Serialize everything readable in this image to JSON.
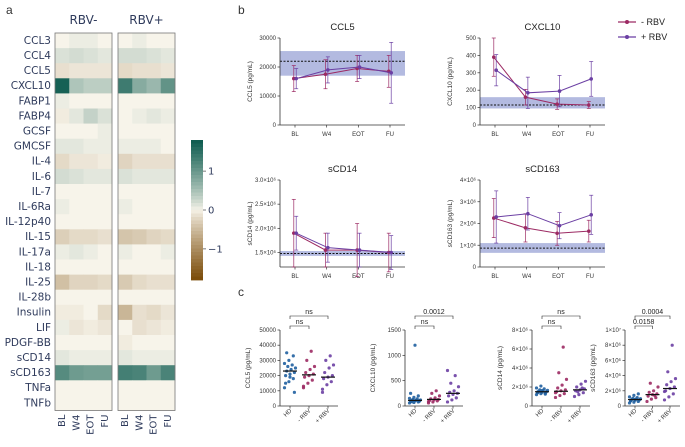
{
  "panel_labels": {
    "a": "a",
    "b": "b",
    "c": "c"
  },
  "colors": {
    "hd": "#1f5fa0",
    "minus": "#9c2a63",
    "plus": "#6b3fa3",
    "band": "#9aa3d6",
    "hm_pos": "#0b5a4e",
    "hm_neg": "#7a4a07"
  },
  "chart_data": [
    {
      "type": "heatmap",
      "panel": "a",
      "groups": [
        "RBV-",
        "RBV+"
      ],
      "columns": [
        "BL",
        "W4",
        "EOT",
        "FU",
        "BL",
        "W4",
        "EOT",
        "FU"
      ],
      "rows": [
        "CCL3",
        "CCL4",
        "CCL5",
        "CXCL10",
        "FABP1",
        "FABP4",
        "GCSF",
        "GMCSF",
        "IL-4",
        "IL-6",
        "IL-7",
        "IL-6Ra",
        "IL-12p40",
        "IL-15",
        "IL-17a",
        "IL-18",
        "IL-25",
        "IL-28b",
        "Insulin",
        "LIF",
        "PDGF-BB",
        "sCD14",
        "sCD163",
        "TNFa",
        "TNFb"
      ],
      "values": [
        [
          0.0,
          0.05,
          0.05,
          0.0,
          0.0,
          0.05,
          0.0,
          0.0
        ],
        [
          0.15,
          0.2,
          0.15,
          0.1,
          0.2,
          0.2,
          0.15,
          0.1
        ],
        [
          -0.15,
          -0.1,
          -0.1,
          -0.1,
          -0.2,
          -0.15,
          -0.15,
          -0.1
        ],
        [
          1.7,
          0.45,
          0.35,
          0.35,
          1.35,
          0.75,
          0.6,
          1.05
        ],
        [
          0.05,
          0.0,
          0.0,
          0.0,
          0.0,
          0.0,
          0.0,
          0.0
        ],
        [
          -0.05,
          0.1,
          0.3,
          0.15,
          0.0,
          0.05,
          0.1,
          0.05
        ],
        [
          0.0,
          0.0,
          0.0,
          0.05,
          0.0,
          0.0,
          0.0,
          0.0
        ],
        [
          0.1,
          0.1,
          0.05,
          0.05,
          0.05,
          0.05,
          0.05,
          0.0
        ],
        [
          -0.2,
          -0.1,
          -0.1,
          -0.05,
          -0.25,
          -0.15,
          -0.15,
          -0.15
        ],
        [
          0.2,
          0.15,
          0.1,
          0.1,
          0.15,
          0.1,
          0.1,
          0.1
        ],
        [
          0.0,
          0.0,
          0.0,
          0.0,
          0.0,
          0.0,
          0.0,
          0.0
        ],
        [
          0.05,
          0.0,
          0.0,
          0.0,
          0.05,
          0.0,
          0.0,
          0.0
        ],
        [
          0.0,
          0.0,
          0.0,
          0.0,
          0.0,
          0.0,
          0.0,
          0.0
        ],
        [
          -0.3,
          -0.2,
          -0.2,
          -0.15,
          -0.4,
          -0.35,
          -0.25,
          -0.2
        ],
        [
          0.05,
          0.1,
          0.05,
          0.0,
          0.05,
          0.0,
          0.0,
          0.05
        ],
        [
          0.0,
          0.0,
          0.0,
          0.0,
          0.0,
          0.0,
          0.0,
          0.0
        ],
        [
          -0.45,
          -0.25,
          -0.25,
          -0.2,
          -0.35,
          -0.2,
          -0.15,
          -0.15
        ],
        [
          0.0,
          0.0,
          0.0,
          0.0,
          0.0,
          0.0,
          0.0,
          0.0
        ],
        [
          -0.05,
          -0.05,
          0.0,
          -0.2,
          -0.55,
          -0.15,
          -0.2,
          -0.1
        ],
        [
          0.05,
          -0.1,
          -0.05,
          -0.1,
          0.0,
          -0.15,
          -0.1,
          -0.05
        ],
        [
          0.0,
          0.0,
          0.0,
          0.0,
          -0.05,
          0.0,
          0.0,
          0.0
        ],
        [
          0.1,
          0.05,
          0.05,
          0.05,
          0.1,
          0.05,
          0.05,
          0.05
        ],
        [
          1.15,
          0.95,
          0.9,
          0.9,
          1.3,
          1.25,
          0.95,
          1.25
        ],
        [
          0.0,
          0.0,
          0.0,
          0.0,
          0.0,
          0.0,
          0.0,
          0.0
        ],
        [
          0.0,
          0.0,
          0.0,
          0.0,
          0.0,
          0.0,
          0.0,
          0.0
        ]
      ],
      "colorbar_ticks": [
        "1",
        "0",
        "−1"
      ],
      "vrange": [
        -1.8,
        1.8
      ]
    },
    {
      "type": "line",
      "panel": "b",
      "title": "CCL5",
      "ylabel": "CCL5 (pg/mL)",
      "categories": [
        "BL",
        "W4",
        "EOT",
        "FU"
      ],
      "ylim": [
        0,
        30000
      ],
      "yticks": [
        "0",
        "10000",
        "20000",
        "30000"
      ],
      "band": [
        17000,
        25500
      ],
      "ref": 22000,
      "series": [
        {
          "name": "- RBV",
          "values": [
            16000,
            17500,
            19500,
            18500
          ],
          "err": [
            4500,
            5000,
            4500,
            5500
          ]
        },
        {
          "name": "+ RBV",
          "values": [
            16000,
            19000,
            20000,
            18000
          ],
          "err": [
            3500,
            4500,
            4000,
            10500
          ]
        }
      ]
    },
    {
      "type": "line",
      "panel": "b",
      "title": "CXCL10",
      "ylabel": "CXCL10 (pg/mL)",
      "categories": [
        "BL",
        "W4",
        "EOT",
        "FU"
      ],
      "ylim": [
        0,
        500
      ],
      "yticks": [
        "0",
        "100",
        "200",
        "300",
        "400",
        "500"
      ],
      "band": [
        95,
        160
      ],
      "ref": 115,
      "series": [
        {
          "name": "- RBV",
          "values": [
            390,
            160,
            120,
            115
          ],
          "err": [
            110,
            45,
            30,
            20
          ]
        },
        {
          "name": "+ RBV",
          "values": [
            315,
            185,
            195,
            265
          ],
          "err": [
            90,
            90,
            90,
            100
          ]
        }
      ]
    },
    {
      "type": "line",
      "panel": "b",
      "title": "sCD14",
      "ylabel": "sCD14 (pg/mL)",
      "categories": [
        "BL",
        "W4",
        "EOT",
        "FU"
      ],
      "ylim": [
        1200000,
        3000000
      ],
      "yticks": [
        "1.5×10⁶",
        "2.0×10⁶",
        "2.5×10⁶",
        "3.0×10⁶"
      ],
      "tick_values": [
        1500000,
        2000000,
        2500000,
        3000000
      ],
      "band": [
        1430000,
        1530000
      ],
      "ref": 1480000,
      "series": [
        {
          "name": "- RBV",
          "values": [
            1900000,
            1550000,
            1550000,
            1500000
          ],
          "err": [
            700000,
            350000,
            550000,
            400000
          ]
        },
        {
          "name": "+ RBV",
          "values": [
            1900000,
            1600000,
            1550000,
            1500000
          ],
          "err": [
            350000,
            300000,
            350000,
            350000
          ]
        }
      ]
    },
    {
      "type": "line",
      "panel": "b",
      "title": "sCD163",
      "ylabel": "sCD163 (pg/mL)",
      "categories": [
        "BL",
        "W4",
        "EOT",
        "FU"
      ],
      "ylim": [
        0,
        4000000
      ],
      "yticks": [
        "0",
        "1×10⁶",
        "2×10⁶",
        "3×10⁶",
        "4×10⁶"
      ],
      "tick_values": [
        0,
        1000000,
        2000000,
        3000000,
        4000000
      ],
      "band": [
        650000,
        1100000
      ],
      "ref": 870000,
      "series": [
        {
          "name": "- RBV",
          "values": [
            2250000,
            1800000,
            1550000,
            1650000
          ],
          "err": [
            900000,
            650000,
            550000,
            500000
          ]
        },
        {
          "name": "+ RBV",
          "values": [
            2300000,
            2450000,
            1900000,
            2400000
          ],
          "err": [
            1200000,
            750000,
            600000,
            900000
          ]
        }
      ]
    },
    {
      "type": "scatter",
      "panel": "c",
      "ylabel": "CCL5 (pg/mL)",
      "categories": [
        "HD",
        "- RBV",
        "+ RBV"
      ],
      "ylim": [
        0,
        50000
      ],
      "yticks": [
        "0",
        "10000",
        "20000",
        "30000",
        "40000",
        "50000"
      ],
      "tick_values": [
        0,
        10000,
        20000,
        30000,
        40000,
        50000
      ],
      "medians": [
        23000,
        20500,
        19000
      ],
      "points": [
        [
          12000,
          16000,
          18000,
          20000,
          21000,
          22000,
          23000,
          24000,
          25000,
          26000,
          27000,
          28000,
          30000,
          33000,
          15000,
          19000,
          9000,
          35000
        ],
        [
          12000,
          15000,
          17000,
          19000,
          20000,
          21000,
          22000,
          24000,
          26000,
          30000,
          36000,
          13000
        ],
        [
          11000,
          14000,
          16000,
          18000,
          19000,
          20000,
          22000,
          25000,
          27000,
          30000,
          33000,
          9000
        ]
      ],
      "brackets": [
        {
          "from": 0,
          "to": 1,
          "label": "ns"
        },
        {
          "from": 0,
          "to": 2,
          "label": "ns"
        }
      ]
    },
    {
      "type": "scatter",
      "panel": "c",
      "ylabel": "CXCL10 (pg/mL)",
      "categories": [
        "HD",
        "- RBV",
        "+ RBV"
      ],
      "ylim": [
        0,
        1500
      ],
      "yticks": [
        "0",
        "500",
        "1000",
        "1500"
      ],
      "tick_values": [
        0,
        500,
        1000,
        1500
      ],
      "medians": [
        110,
        130,
        250
      ],
      "points": [
        [
          60,
          70,
          80,
          90,
          100,
          105,
          110,
          115,
          120,
          130,
          140,
          150,
          170,
          200,
          250,
          1200,
          95,
          85
        ],
        [
          60,
          80,
          100,
          110,
          120,
          130,
          140,
          160,
          200,
          250,
          300,
          90
        ],
        [
          80,
          120,
          160,
          200,
          230,
          250,
          270,
          300,
          380,
          450,
          600,
          700
        ]
      ],
      "brackets": [
        {
          "from": 0,
          "to": 1,
          "label": "ns"
        },
        {
          "from": 0,
          "to": 2,
          "label": "0.0012"
        }
      ]
    },
    {
      "type": "scatter",
      "panel": "c",
      "ylabel": "sCD14 (pg/mL)",
      "categories": [
        "HD",
        "- RBV",
        "+ RBV"
      ],
      "ylim": [
        0,
        8000000
      ],
      "yticks": [
        "0",
        "2×10⁶",
        "4×10⁶",
        "6×10⁶",
        "8×10⁶"
      ],
      "tick_values": [
        0,
        2000000,
        4000000,
        6000000,
        8000000
      ],
      "medians": [
        1500000,
        1550000,
        1700000
      ],
      "points": [
        [
          1200000,
          1300000,
          1350000,
          1400000,
          1450000,
          1500000,
          1550000,
          1600000,
          1650000,
          1700000,
          1800000,
          1900000,
          2100000,
          1250000,
          1480000,
          1620000
        ],
        [
          900000,
          1100000,
          1300000,
          1500000,
          1600000,
          1700000,
          1900000,
          2200000,
          2800000,
          3500000,
          6200000,
          1400000
        ],
        [
          1000000,
          1200000,
          1400000,
          1600000,
          1700000,
          1800000,
          2000000,
          2300000,
          2600000,
          1500000,
          1900000
        ]
      ],
      "brackets": [
        {
          "from": 0,
          "to": 1,
          "label": "ns"
        },
        {
          "from": 0,
          "to": 2,
          "label": "ns"
        }
      ]
    },
    {
      "type": "scatter",
      "panel": "c",
      "ylabel": "sCD163 (pg/mL)",
      "categories": [
        "HD",
        "- RBV",
        "+ RBV"
      ],
      "ylim": [
        0,
        10000000
      ],
      "yticks": [
        "0",
        "2×10⁶",
        "4×10⁶",
        "6×10⁶",
        "8×10⁶",
        "1×10⁷"
      ],
      "tick_values": [
        0,
        2000000,
        4000000,
        6000000,
        8000000,
        10000000
      ],
      "medians": [
        850000,
        1500000,
        2300000
      ],
      "points": [
        [
          400000,
          500000,
          600000,
          700000,
          750000,
          800000,
          850000,
          900000,
          950000,
          1000000,
          1100000,
          1200000,
          1400000,
          1600000,
          650000,
          880000
        ],
        [
          600000,
          900000,
          1100000,
          1300000,
          1500000,
          1600000,
          1800000,
          2000000,
          2500000,
          3000000,
          1400000
        ],
        [
          800000,
          1200000,
          1600000,
          2000000,
          2300000,
          2500000,
          2800000,
          3200000,
          3600000,
          4500000,
          8000000,
          1900000
        ]
      ],
      "brackets": [
        {
          "from": 0,
          "to": 1,
          "label": "0.0158"
        },
        {
          "from": 0,
          "to": 2,
          "label": "0.0004"
        }
      ]
    }
  ]
}
